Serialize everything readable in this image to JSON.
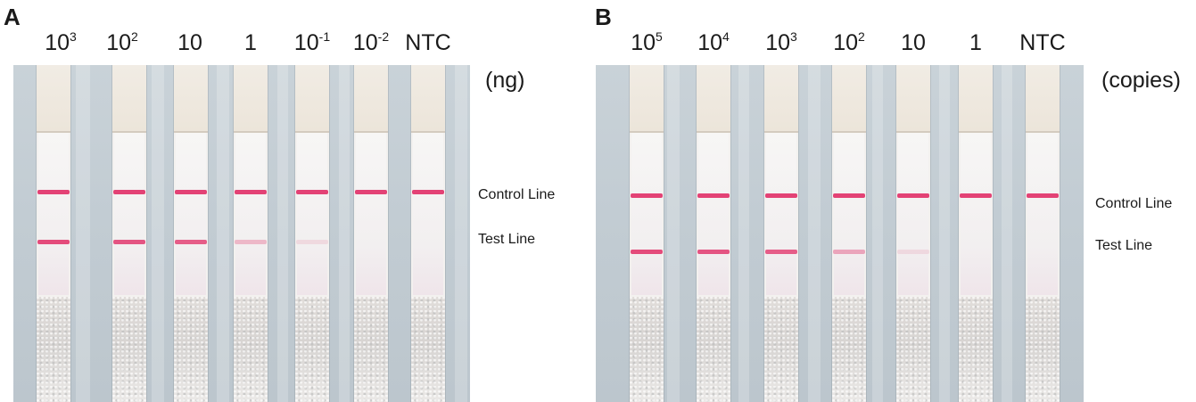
{
  "panels": [
    {
      "letter": "A",
      "unit": "(ng)",
      "control_label": "Control Line",
      "test_label": "Test Line",
      "lanes": [
        {
          "base": "10",
          "exp": "3",
          "test_intensity": 0.9
        },
        {
          "base": "10",
          "exp": "2",
          "test_intensity": 0.85
        },
        {
          "base": "10",
          "exp": "",
          "test_intensity": 0.8
        },
        {
          "base": "1",
          "exp": "",
          "test_intensity": 0.3
        },
        {
          "base": "10",
          "exp": "-1",
          "test_intensity": 0.12
        },
        {
          "base": "10",
          "exp": "-2",
          "test_intensity": 0.0
        },
        {
          "base": "NTC",
          "exp": "",
          "test_intensity": 0.0
        }
      ]
    },
    {
      "letter": "B",
      "unit": "(copies)",
      "control_label": "Control Line",
      "test_label": "Test Line",
      "lanes": [
        {
          "base": "10",
          "exp": "5",
          "test_intensity": 0.9
        },
        {
          "base": "10",
          "exp": "4",
          "test_intensity": 0.85
        },
        {
          "base": "10",
          "exp": "3",
          "test_intensity": 0.8
        },
        {
          "base": "10",
          "exp": "2",
          "test_intensity": 0.4
        },
        {
          "base": "10",
          "exp": "",
          "test_intensity": 0.12
        },
        {
          "base": "1",
          "exp": "",
          "test_intensity": 0.0
        },
        {
          "base": "NTC",
          "exp": "",
          "test_intensity": 0.0
        }
      ]
    }
  ],
  "colors": {
    "band": "#e2386e",
    "background": "#c4cdd4"
  }
}
